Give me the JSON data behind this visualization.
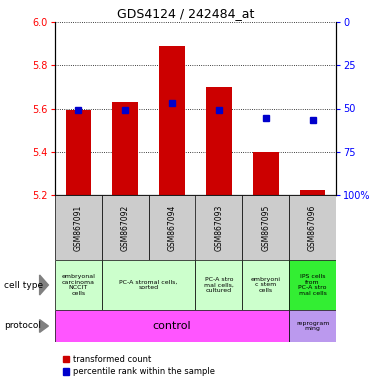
{
  "title": "GDS4124 / 242484_at",
  "samples": [
    "GSM867091",
    "GSM867092",
    "GSM867094",
    "GSM867093",
    "GSM867095",
    "GSM867096"
  ],
  "bar_values": [
    5.595,
    5.63,
    5.89,
    5.7,
    5.4,
    5.225
  ],
  "bar_bottom": 5.2,
  "percentile_values": [
    5.595,
    5.595,
    5.625,
    5.595,
    5.555,
    5.548
  ],
  "ylim": [
    5.2,
    6.0
  ],
  "yticks_left": [
    5.2,
    5.4,
    5.6,
    5.8,
    6.0
  ],
  "yticks_right": [
    0,
    25,
    50,
    75,
    100
  ],
  "bar_color": "#cc0000",
  "dot_color": "#0000cc",
  "cell_type_labels": [
    "embryonal\ncarcinoma\nNCCIT\ncells",
    "PC-A stromal cells,\nsorted",
    "PC-A stro\nmal cells,\ncultured",
    "embryoni\nc stem\ncells",
    "IPS cells\nfrom\nPC-A stro\nmal cells"
  ],
  "cell_type_colors": [
    "#ccffcc",
    "#ccffcc",
    "#ccffcc",
    "#ccffcc",
    "#33ee33"
  ],
  "protocol_label_control": "control",
  "protocol_label_reprogram": "reprogram\nming",
  "protocol_color_control": "#ff55ff",
  "protocol_color_reprogram": "#bb99ee",
  "sample_bg_color": "#cccccc",
  "legend_red_label": "transformed count",
  "legend_blue_label": "percentile rank within the sample",
  "right_ytick_labels": [
    "100%",
    "75",
    "50",
    "25",
    "0"
  ]
}
